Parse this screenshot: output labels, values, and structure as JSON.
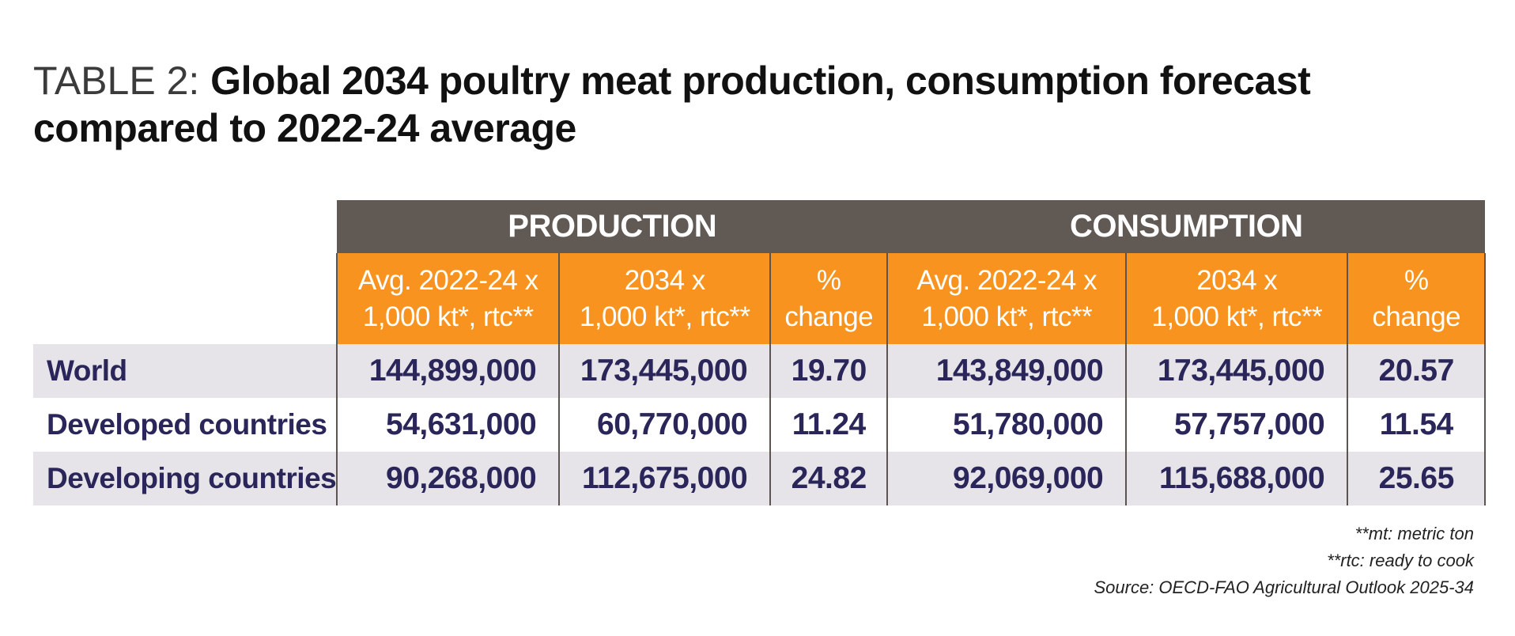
{
  "title": {
    "prefix": "TABLE 2: ",
    "text": "Global 2034 poultry meat production, consumption forecast compared to 2022-24 average"
  },
  "chart_data": {
    "type": "table",
    "groups": [
      "PRODUCTION",
      "CONSUMPTION"
    ],
    "columns": [
      [
        "Avg. 2022-24 x",
        "1,000 kt*, rtc**"
      ],
      [
        "2034 x",
        "1,000 kt*, rtc**"
      ],
      [
        "%",
        "change"
      ],
      [
        "Avg. 2022-24 x",
        "1,000 kt*, rtc**"
      ],
      [
        "2034 x",
        "1,000 kt*, rtc**"
      ],
      [
        "%",
        "change"
      ]
    ],
    "rows": [
      {
        "label": "World",
        "values": [
          "144,899,000",
          "173,445,000",
          "19.70",
          "143,849,000",
          "173,445,000",
          "20.57"
        ]
      },
      {
        "label": "Developed countries",
        "values": [
          "54,631,000",
          "60,770,000",
          "11.24",
          "51,780,000",
          "57,757,000",
          "11.54"
        ]
      },
      {
        "label": "Developing countries",
        "values": [
          "90,268,000",
          "112,675,000",
          "24.82",
          "92,069,000",
          "115,688,000",
          "25.65"
        ]
      }
    ]
  },
  "notes": [
    "**mt: metric ton",
    "**rtc: ready to cook",
    "Source: OECD-FAO Agricultural Outlook 2025-34"
  ],
  "colors": {
    "group_header_bg": "#615954",
    "sub_header_bg": "#f7931e",
    "row_stripe_bg": "#e6e4e8",
    "value_text": "#2a2659"
  }
}
